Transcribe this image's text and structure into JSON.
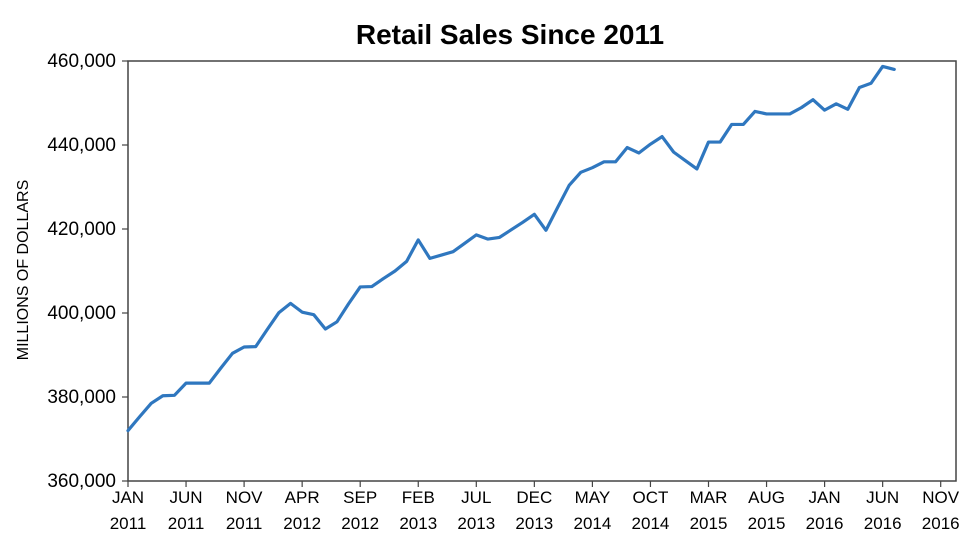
{
  "chart_data": {
    "type": "line",
    "title": "Retail Sales Since 2011",
    "xlabel": "",
    "ylabel": "MILLIONS OF DOLLARS",
    "ylim": [
      360000,
      460000
    ],
    "y_ticks": [
      360000,
      380000,
      400000,
      420000,
      440000,
      460000
    ],
    "y_tick_labels": [
      "360,000",
      "380,000",
      "400,000",
      "420,000",
      "440,000",
      "460,000"
    ],
    "x_ticks": [
      {
        "month": "JAN",
        "year": "2011",
        "date": "2011-01"
      },
      {
        "month": "JUN",
        "year": "2011",
        "date": "2011-06"
      },
      {
        "month": "NOV",
        "year": "2011",
        "date": "2011-11"
      },
      {
        "month": "APR",
        "year": "2012",
        "date": "2012-04"
      },
      {
        "month": "SEP",
        "year": "2012",
        "date": "2012-09"
      },
      {
        "month": "FEB",
        "year": "2013",
        "date": "2013-02"
      },
      {
        "month": "JUL",
        "year": "2013",
        "date": "2013-07"
      },
      {
        "month": "DEC",
        "year": "2013",
        "date": "2013-12"
      },
      {
        "month": "MAY",
        "year": "2014",
        "date": "2014-05"
      },
      {
        "month": "OCT",
        "year": "2014",
        "date": "2014-10"
      },
      {
        "month": "MAR",
        "year": "2015",
        "date": "2015-03"
      },
      {
        "month": "AUG",
        "year": "2015",
        "date": "2015-08"
      },
      {
        "month": "JAN",
        "year": "2016",
        "date": "2016-01"
      },
      {
        "month": "JUN",
        "year": "2016",
        "date": "2016-06"
      },
      {
        "month": "NOV",
        "year": "2016",
        "date": "2016-11"
      }
    ],
    "grid": false,
    "legend": "none",
    "line_color": "#2f77bf",
    "series": [
      {
        "x": [
          "2011-01",
          "2011-02",
          "2011-03",
          "2011-04",
          "2011-05",
          "2011-06",
          "2011-07",
          "2011-08",
          "2011-09",
          "2011-10",
          "2011-11",
          "2011-12",
          "2012-01",
          "2012-02",
          "2012-03",
          "2012-04",
          "2012-05",
          "2012-06",
          "2012-07",
          "2012-08",
          "2012-09",
          "2012-10",
          "2012-11",
          "2012-12",
          "2013-01",
          "2013-02",
          "2013-03",
          "2013-04",
          "2013-05",
          "2013-06",
          "2013-07",
          "2013-08",
          "2013-09",
          "2013-10",
          "2013-11",
          "2013-12",
          "2014-01",
          "2014-02",
          "2014-03",
          "2014-04",
          "2014-05",
          "2014-06",
          "2014-07",
          "2014-08",
          "2014-09",
          "2014-10",
          "2014-11",
          "2014-12",
          "2015-01",
          "2015-02",
          "2015-03",
          "2015-04",
          "2015-05",
          "2015-06",
          "2015-07",
          "2015-08",
          "2015-09",
          "2015-10",
          "2015-11",
          "2015-12",
          "2016-01",
          "2016-02",
          "2016-03",
          "2016-04",
          "2016-05",
          "2016-06",
          "2016-07"
        ],
        "values": [
          372000,
          375300,
          378500,
          380300,
          380400,
          383300,
          383300,
          383300,
          386900,
          390400,
          391900,
          392000,
          396100,
          400100,
          402300,
          400200,
          399600,
          396200,
          397900,
          402200,
          406200,
          406300,
          408200,
          410000,
          412300,
          417400,
          413000,
          413800,
          414600,
          416600,
          418600,
          417600,
          418000,
          419800,
          421600,
          423500,
          419700,
          425100,
          430400,
          433500,
          434600,
          436000,
          436000,
          439400,
          438100,
          440200,
          442000,
          438300,
          436300,
          434300,
          440700,
          440700,
          444900,
          444900,
          448000,
          447400,
          447400,
          447400,
          448900,
          450800,
          448300,
          449800,
          448500,
          453700,
          454700,
          458700,
          458000
        ]
      }
    ]
  }
}
